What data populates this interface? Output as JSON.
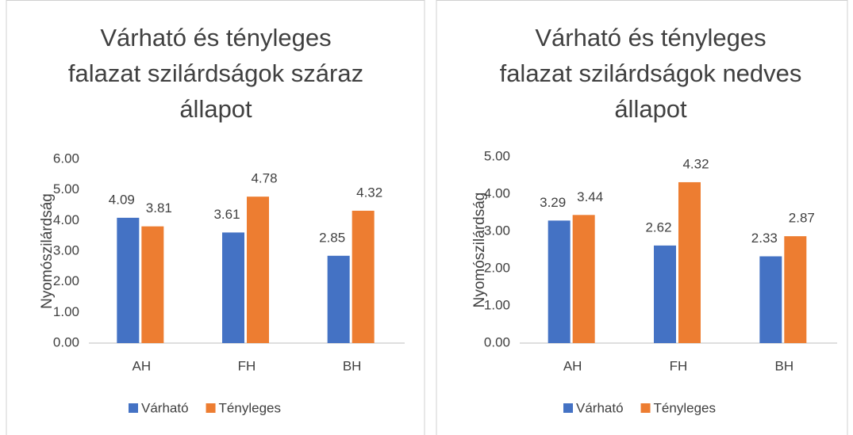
{
  "chart_data": [
    {
      "type": "bar",
      "title": [
        "Várható és tényleges",
        "falazat szilárdságok száraz",
        "állapot"
      ],
      "y_label": "Nyomószilárdság",
      "categories": [
        "AH",
        "FH",
        "BH"
      ],
      "series": [
        {
          "name": "Várható",
          "color": "#4472c4",
          "values": [
            4.09,
            3.61,
            2.85
          ]
        },
        {
          "name": "Tényleges",
          "color": "#ed7d31",
          "values": [
            3.81,
            4.78,
            4.32
          ]
        }
      ],
      "ylim": [
        0,
        6
      ],
      "yticks": [
        {
          "value": 0,
          "label": "0.00"
        },
        {
          "value": 1,
          "label": "1.00"
        },
        {
          "value": 2,
          "label": "2.00"
        },
        {
          "value": 3,
          "label": "3.00"
        },
        {
          "value": 4,
          "label": "4.00"
        },
        {
          "value": 5,
          "label": "5.00"
        },
        {
          "value": 6,
          "label": "6.00"
        }
      ],
      "legend": "bottom"
    },
    {
      "type": "bar",
      "title": [
        "Várható és tényleges",
        "falazat szilárdságok nedves",
        "állapot"
      ],
      "y_label": "Nyomószilárdság",
      "categories": [
        "AH",
        "FH",
        "BH"
      ],
      "series": [
        {
          "name": "Várható",
          "color": "#4472c4",
          "values": [
            3.29,
            2.62,
            2.33
          ]
        },
        {
          "name": "Tényleges",
          "color": "#ed7d31",
          "values": [
            3.44,
            4.32,
            2.87
          ]
        }
      ],
      "ylim": [
        0,
        5
      ],
      "yticks": [
        {
          "value": 0,
          "label": "0.00"
        },
        {
          "value": 1,
          "label": "1.00"
        },
        {
          "value": 2,
          "label": "2.00"
        },
        {
          "value": 3,
          "label": "3.00"
        },
        {
          "value": 4,
          "label": "4.00"
        },
        {
          "value": 5,
          "label": "5.00"
        }
      ],
      "legend": "bottom"
    }
  ]
}
